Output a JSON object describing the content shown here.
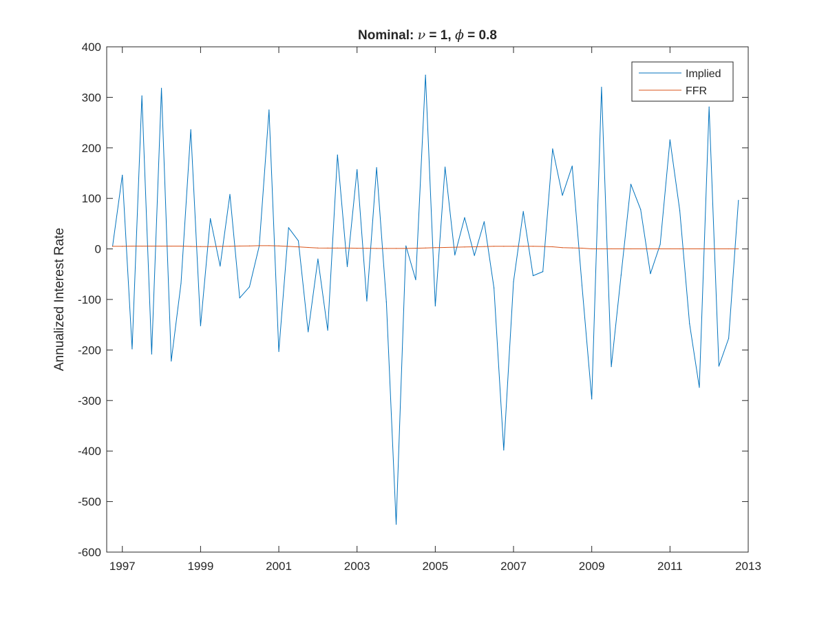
{
  "chart_data": {
    "type": "line",
    "title": {
      "prefix": "Nominal: ",
      "sym1": "ν",
      "mid": " = 1, ",
      "sym2": "ϕ",
      "suffix": " = 0.8"
    },
    "xlabel": "",
    "ylabel": "Annualized Interest Rate",
    "xlim": [
      1996.6,
      2013.0
    ],
    "ylim": [
      -600,
      400
    ],
    "xticks": [
      1997,
      1999,
      2001,
      2003,
      2005,
      2007,
      2009,
      2011,
      2013
    ],
    "xtick_labels": [
      "1997",
      "1999",
      "2001",
      "2003",
      "2005",
      "2007",
      "2009",
      "2011",
      "2013"
    ],
    "yticks": [
      400,
      300,
      200,
      100,
      0,
      -100,
      -200,
      -300,
      -400,
      -500,
      -600
    ],
    "ytick_labels": [
      "400",
      "300",
      "200",
      "100",
      "0",
      "-100",
      "-200",
      "-300",
      "-400",
      "-500",
      "-600"
    ],
    "grid": false,
    "legend_position": "top-right",
    "series": [
      {
        "name": "Implied",
        "color": "#0072BD",
        "x": [
          1996.75,
          1997.0,
          1997.25,
          1997.5,
          1997.75,
          1998.0,
          1998.25,
          1998.5,
          1998.75,
          1999.0,
          1999.25,
          1999.5,
          1999.75,
          2000.0,
          2000.25,
          2000.5,
          2000.75,
          2001.0,
          2001.25,
          2001.5,
          2001.75,
          2002.0,
          2002.25,
          2002.5,
          2002.75,
          2003.0,
          2003.25,
          2003.5,
          2003.75,
          2004.0,
          2004.25,
          2004.5,
          2004.75,
          2005.0,
          2005.25,
          2005.5,
          2005.75,
          2006.0,
          2006.25,
          2006.5,
          2006.75,
          2007.0,
          2007.25,
          2007.5,
          2007.75,
          2008.0,
          2008.25,
          2008.5,
          2008.75,
          2009.0,
          2009.25,
          2009.5,
          2009.75,
          2010.0,
          2010.25,
          2010.5,
          2010.75,
          2011.0,
          2011.25,
          2011.5,
          2011.75,
          2012.0,
          2012.25,
          2012.5,
          2012.75
        ],
        "values": [
          5,
          146,
          -198,
          303,
          -208,
          318,
          -222,
          -68,
          236,
          -152,
          60,
          -34,
          108,
          -97,
          -75,
          6,
          275,
          -203,
          42,
          16,
          -164,
          -20,
          -161,
          186,
          -35,
          157,
          -103,
          161,
          -105,
          -545,
          6,
          -61,
          344,
          -113,
          162,
          -12,
          62,
          -13,
          54,
          -77,
          -398,
          -65,
          74,
          -53,
          -45,
          198,
          106,
          164,
          -72,
          -297,
          320,
          -233,
          -52,
          128,
          78,
          -49,
          9,
          216,
          76,
          -148,
          -274,
          281,
          -232,
          -177,
          96
        ]
      },
      {
        "name": "FFR",
        "color": "#D95319",
        "x": [
          1996.75,
          1997.0,
          1997.25,
          1997.5,
          1997.75,
          1998.0,
          1998.25,
          1998.5,
          1998.75,
          1999.0,
          1999.25,
          1999.5,
          1999.75,
          2000.0,
          2000.25,
          2000.5,
          2000.75,
          2001.0,
          2001.25,
          2001.5,
          2001.75,
          2002.0,
          2002.25,
          2002.5,
          2002.75,
          2003.0,
          2003.25,
          2003.5,
          2003.75,
          2004.0,
          2004.25,
          2004.5,
          2004.75,
          2005.0,
          2005.25,
          2005.5,
          2005.75,
          2006.0,
          2006.25,
          2006.5,
          2006.75,
          2007.0,
          2007.25,
          2007.5,
          2007.75,
          2008.0,
          2008.25,
          2008.5,
          2008.75,
          2009.0,
          2009.25,
          2009.5,
          2009.75,
          2010.0,
          2010.25,
          2010.5,
          2010.75,
          2011.0,
          2011.25,
          2011.5,
          2011.75,
          2012.0,
          2012.25,
          2012.5,
          2012.75
        ],
        "values": [
          5.3,
          5.3,
          5.5,
          5.5,
          5.5,
          5.5,
          5.5,
          5.5,
          5.1,
          4.7,
          4.8,
          5.1,
          5.3,
          5.7,
          6.0,
          6.5,
          6.5,
          6.0,
          5.0,
          4.0,
          2.9,
          1.8,
          1.7,
          1.7,
          1.7,
          1.3,
          1.3,
          1.0,
          1.0,
          1.0,
          1.0,
          1.4,
          1.9,
          2.5,
          2.8,
          3.3,
          3.8,
          4.3,
          4.8,
          5.3,
          5.3,
          5.3,
          5.3,
          5.3,
          4.9,
          4.2,
          2.6,
          2.0,
          1.5,
          0.2,
          0.2,
          0.2,
          0.2,
          0.1,
          0.1,
          0.2,
          0.2,
          0.2,
          0.1,
          0.1,
          0.1,
          0.1,
          0.1,
          0.1,
          0.2
        ]
      }
    ]
  }
}
